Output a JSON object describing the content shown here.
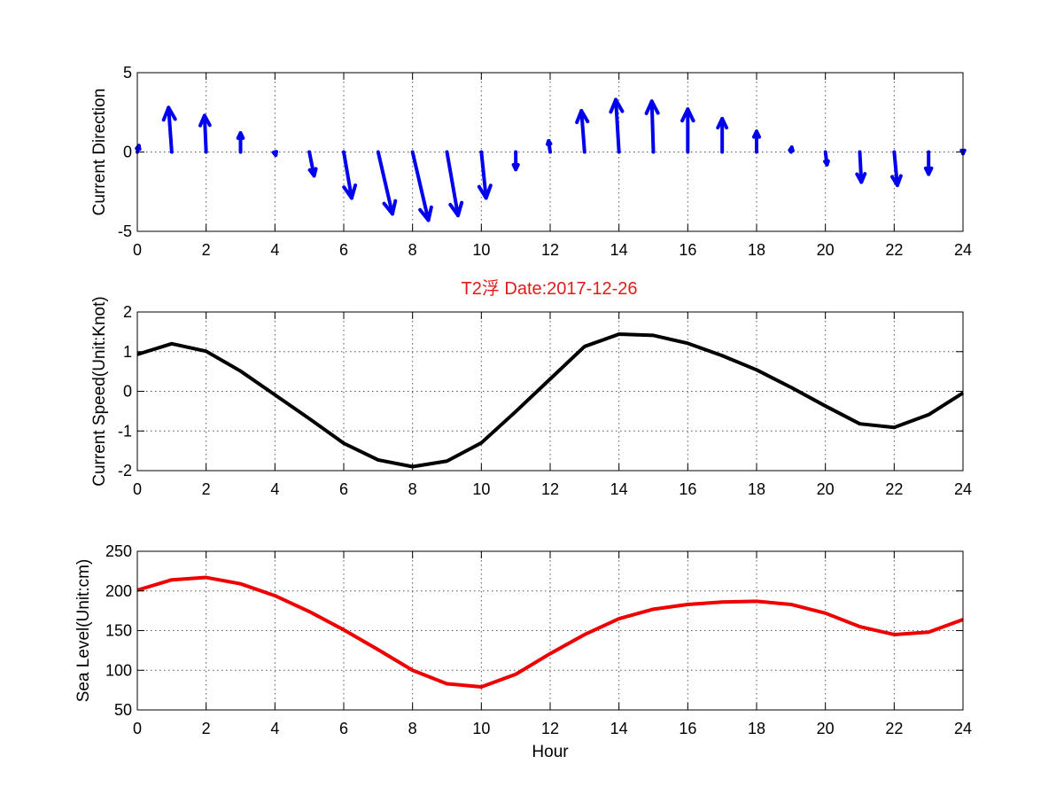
{
  "title": "T2浮   Date:2017-12-26",
  "colors": {
    "title": "#e11b1b",
    "direction": "#0000ee",
    "speed": "#000000",
    "sea_level": "#ee0000",
    "grid": "#555555",
    "axes": "#000000"
  },
  "chart_data": [
    {
      "type": "quiver",
      "ylabel": "Current Direction",
      "xlabel": "",
      "xlim": [
        0,
        24
      ],
      "ylim": [
        -5,
        5
      ],
      "xticks": [
        0,
        2,
        4,
        6,
        8,
        10,
        12,
        14,
        16,
        18,
        20,
        22,
        24
      ],
      "yticks": [
        -5,
        0,
        5
      ],
      "grid": true,
      "x": [
        0,
        1,
        2,
        3,
        4,
        5,
        6,
        7,
        8,
        9,
        10,
        11,
        12,
        13,
        14,
        15,
        16,
        17,
        18,
        19,
        20,
        21,
        22,
        23,
        24
      ],
      "u": [
        0.1,
        -0.2,
        -0.1,
        0,
        0.05,
        0.3,
        0.5,
        0.9,
        1.0,
        0.7,
        0.3,
        0,
        -0.1,
        -0.2,
        -0.2,
        -0.1,
        0,
        0,
        0,
        0.05,
        0.1,
        0.1,
        0.2,
        0,
        0
      ],
      "v": [
        0.4,
        2.8,
        2.3,
        1.2,
        -0.2,
        -1.5,
        -2.9,
        -3.9,
        -4.3,
        -4.0,
        -2.9,
        -1.1,
        0.7,
        2.6,
        3.3,
        3.2,
        2.7,
        2.1,
        1.3,
        0.3,
        -0.8,
        -1.9,
        -2.1,
        -1.4,
        -0.1
      ]
    },
    {
      "type": "line",
      "ylabel": "Current Speed(Unit:Knot)",
      "xlabel": "",
      "xlim": [
        0,
        24
      ],
      "ylim": [
        -2,
        2
      ],
      "xticks": [
        0,
        2,
        4,
        6,
        8,
        10,
        12,
        14,
        16,
        18,
        20,
        22,
        24
      ],
      "yticks": [
        -2,
        -1,
        0,
        1,
        2
      ],
      "grid": true,
      "x": [
        0,
        1,
        2,
        3,
        4,
        5,
        6,
        7,
        8,
        9,
        10,
        11,
        12,
        13,
        14,
        15,
        16,
        17,
        18,
        19,
        20,
        21,
        22,
        23,
        24
      ],
      "y": [
        0.93,
        1.2,
        1.01,
        0.51,
        -0.09,
        -0.69,
        -1.31,
        -1.73,
        -1.9,
        -1.76,
        -1.3,
        -0.51,
        0.31,
        1.13,
        1.44,
        1.41,
        1.21,
        0.9,
        0.54,
        0.1,
        -0.37,
        -0.82,
        -0.91,
        -0.59,
        -0.04
      ]
    },
    {
      "type": "line",
      "ylabel": "Sea Level(Unit:cm)",
      "xlabel": "Hour",
      "xlim": [
        0,
        24
      ],
      "ylim": [
        50,
        250
      ],
      "xticks": [
        0,
        2,
        4,
        6,
        8,
        10,
        12,
        14,
        16,
        18,
        20,
        22,
        24
      ],
      "yticks": [
        50,
        100,
        150,
        200,
        250
      ],
      "grid": true,
      "x": [
        0,
        1,
        2,
        3,
        4,
        5,
        6,
        7,
        8,
        9,
        10,
        11,
        12,
        13,
        14,
        15,
        16,
        17,
        18,
        19,
        20,
        21,
        22,
        23,
        24
      ],
      "y": [
        201,
        214,
        217,
        209,
        194,
        174,
        151,
        126,
        100,
        83,
        79,
        95,
        121,
        145,
        165,
        177,
        183,
        186,
        187,
        183,
        172,
        155,
        145,
        148,
        164
      ]
    }
  ]
}
